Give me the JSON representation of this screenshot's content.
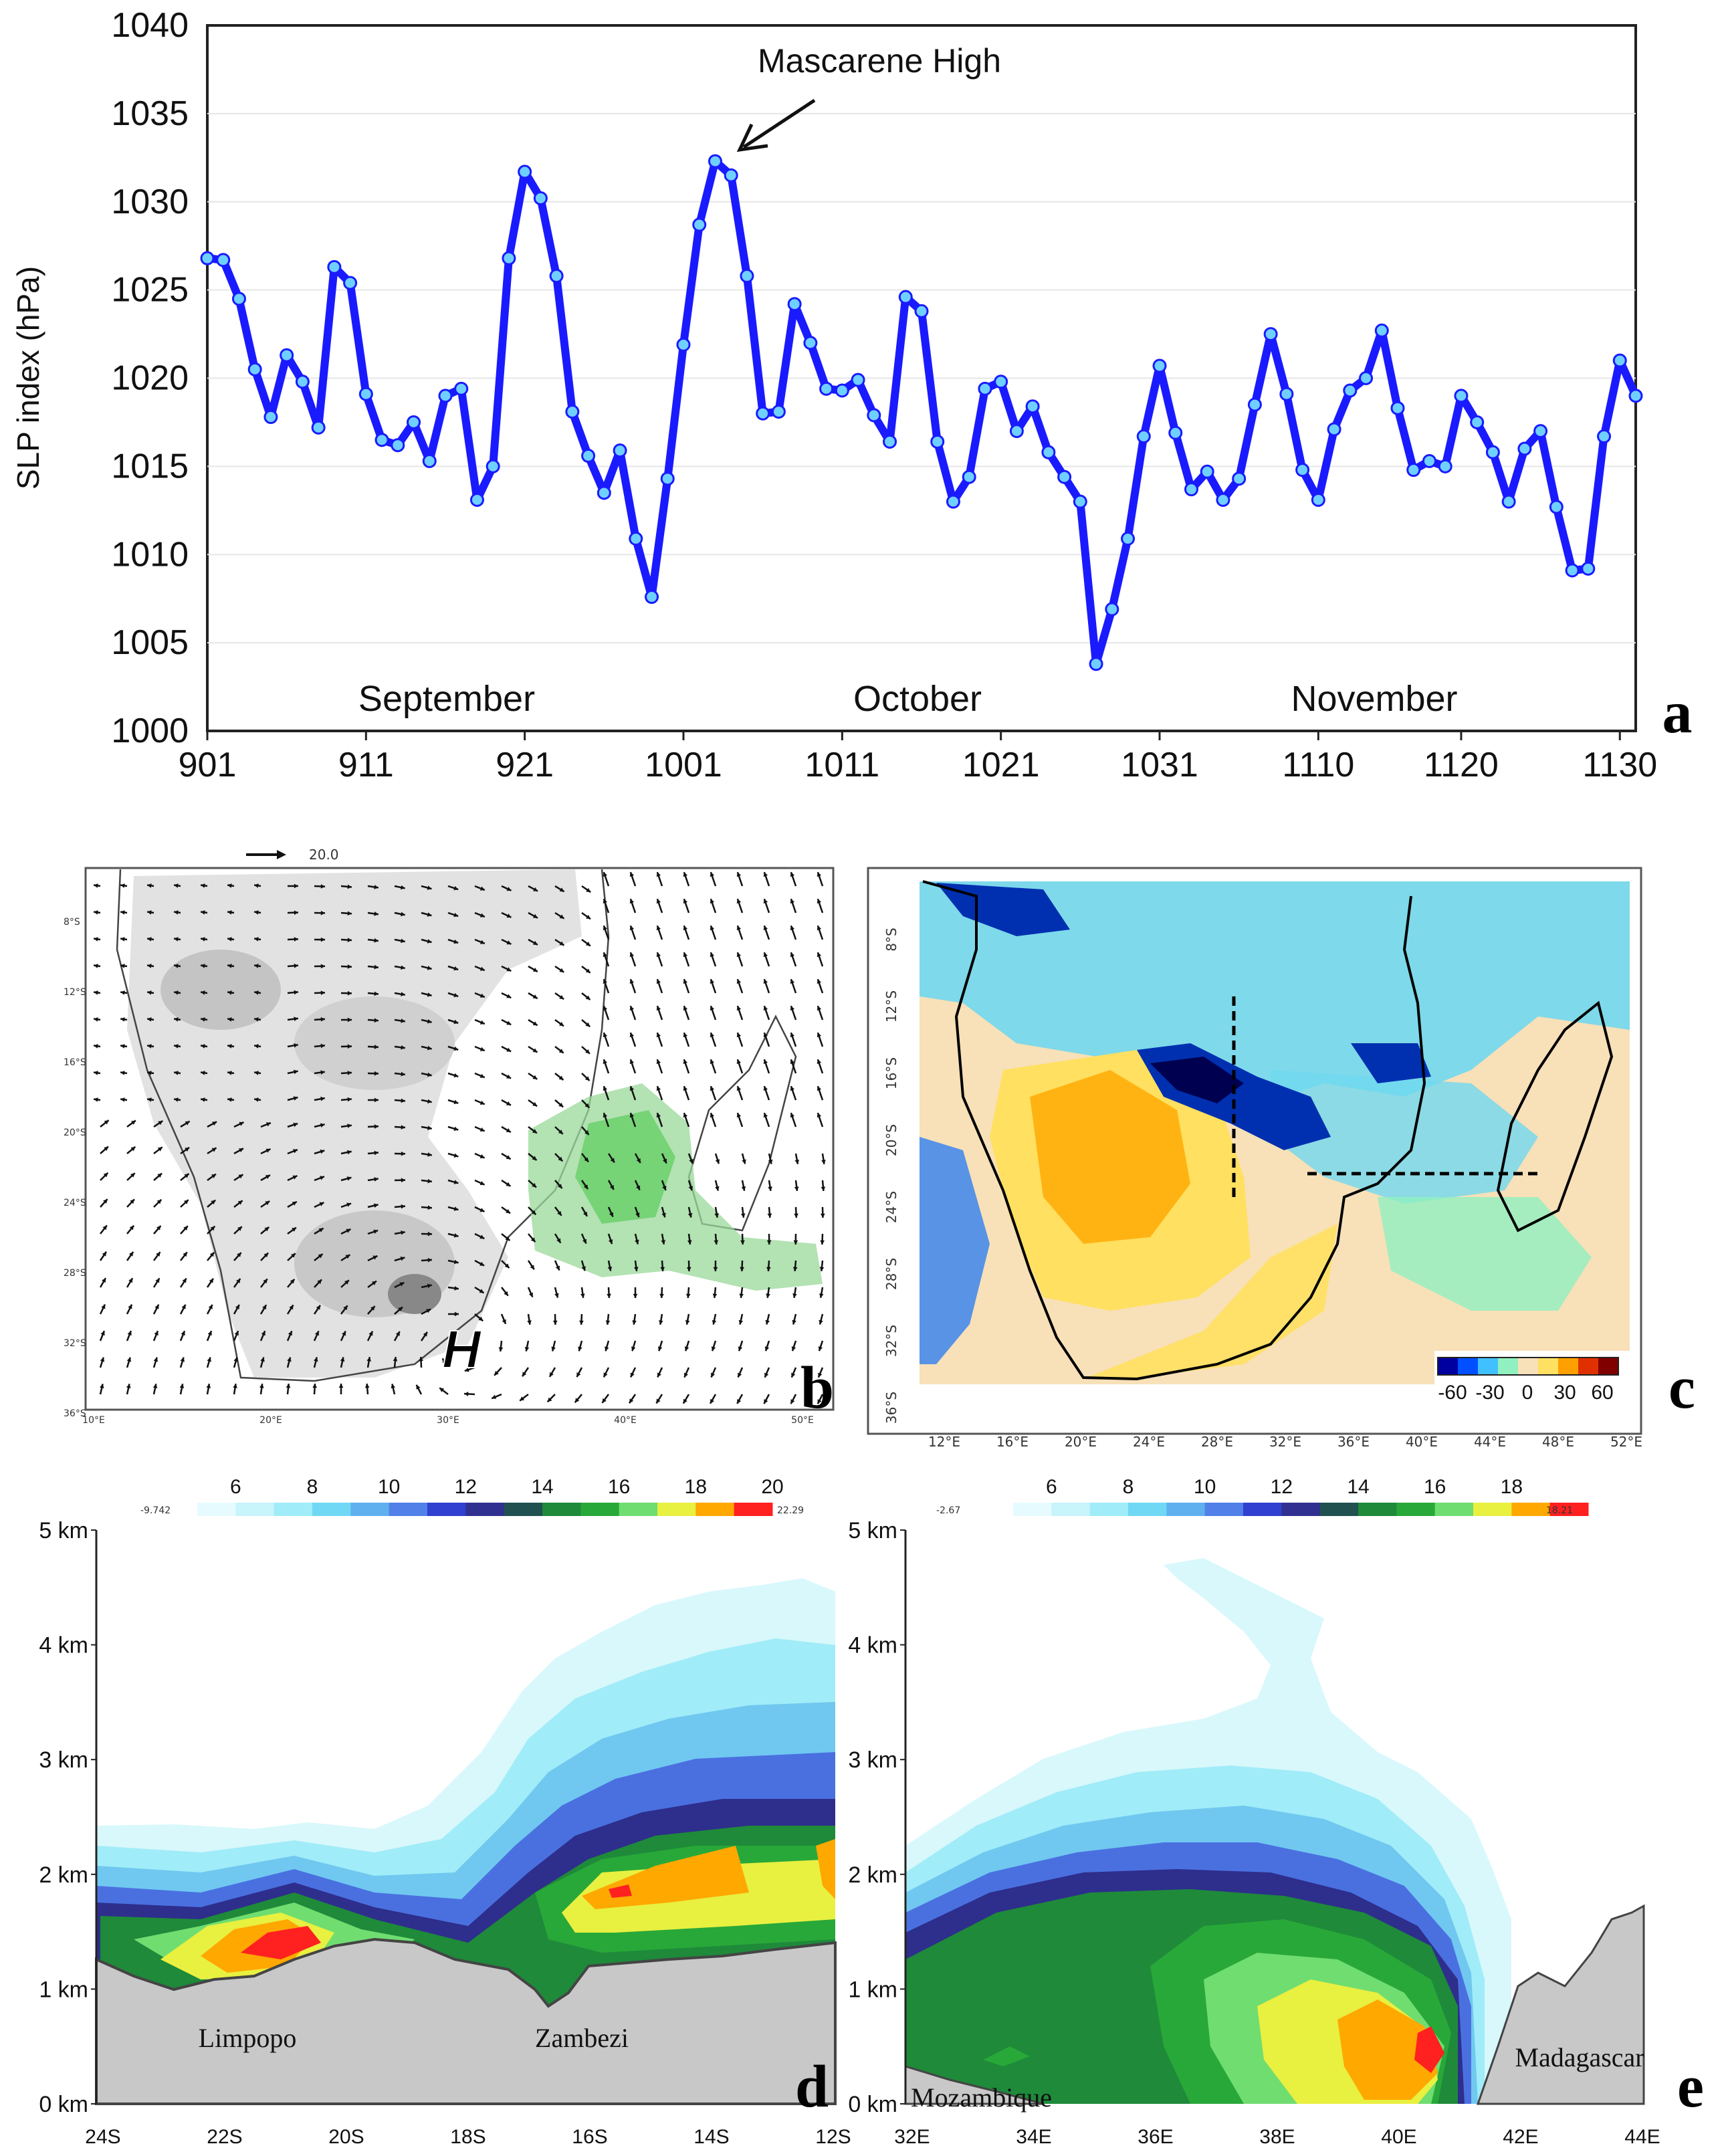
{
  "chart_data": [
    {
      "panel": "a",
      "type": "line",
      "ylabel": "SLP index (hPa)",
      "ylim": [
        1000,
        1040
      ],
      "yticks": [
        "1000",
        "1005",
        "1010",
        "1015",
        "1020",
        "1025",
        "1030",
        "1035",
        "1040"
      ],
      "xtick_labels": [
        "901",
        "911",
        "921",
        "1001",
        "1011",
        "1021",
        "1031",
        "1110",
        "1120",
        "1130"
      ],
      "month_labels": [
        "September",
        "October",
        "November"
      ],
      "annotation": "Mascarene High",
      "series_color": "#1a1aff",
      "values": [
        1026.8,
        1026.7,
        1024.5,
        1020.5,
        1017.8,
        1021.3,
        1019.8,
        1017.2,
        1026.3,
        1025.4,
        1019.1,
        1016.5,
        1016.2,
        1017.5,
        1015.3,
        1019.0,
        1019.4,
        1013.1,
        1015.0,
        1026.8,
        1031.7,
        1030.2,
        1025.8,
        1018.1,
        1015.6,
        1013.5,
        1015.9,
        1010.9,
        1007.6,
        1014.3,
        1021.9,
        1028.7,
        1032.3,
        1031.5,
        1025.8,
        1018.0,
        1018.1,
        1024.2,
        1022.0,
        1019.4,
        1019.3,
        1019.9,
        1017.9,
        1016.4,
        1024.6,
        1023.8,
        1016.4,
        1013.0,
        1014.4,
        1019.4,
        1019.8,
        1017.0,
        1018.4,
        1015.8,
        1014.4,
        1013.0,
        1003.8,
        1006.9,
        1010.9,
        1016.7,
        1020.7,
        1016.9,
        1013.7,
        1014.7,
        1013.1,
        1014.3,
        1018.5,
        1022.5,
        1019.1,
        1014.8,
        1013.1,
        1017.1,
        1019.3,
        1020.0,
        1022.7,
        1018.3,
        1014.8,
        1015.3,
        1015.0,
        1019.0,
        1017.5,
        1015.8,
        1013.0,
        1016.0,
        1017.0,
        1012.7,
        1009.1,
        1009.2,
        1016.7,
        1021.0,
        1019.0
      ]
    },
    {
      "panel": "b",
      "type": "other",
      "description_label": "wind vectors",
      "reference_vector": "20.0",
      "high_label": "H",
      "lat_labels": [
        "8°S",
        "12°S",
        "16°S",
        "20°S",
        "24°S",
        "28°S",
        "32°S",
        "36°S"
      ],
      "lon_labels": [
        "10°E",
        "20°E",
        "30°E",
        "40°E",
        "50°E"
      ]
    },
    {
      "panel": "c",
      "type": "heatmap",
      "lat_labels": [
        "8°S",
        "12°S",
        "16°S",
        "20°S",
        "24°S",
        "28°S",
        "32°S",
        "36°S"
      ],
      "lon_labels": [
        "12°E",
        "16°E",
        "20°E",
        "24°E",
        "28°E",
        "32°E",
        "36°E",
        "40°E",
        "44°E",
        "48°E",
        "52°E"
      ],
      "colorbar_labels": [
        "-60",
        "-30",
        "0",
        "30",
        "60"
      ],
      "colorbar_colors": [
        "#0000a0",
        "#0050ff",
        "#40c0ff",
        "#90f0c0",
        "#f8e0b8",
        "#ffe060",
        "#ffa000",
        "#e03000",
        "#800000"
      ]
    },
    {
      "panel": "d",
      "type": "other",
      "y_labels": [
        "0 km",
        "1 km",
        "2 km",
        "3 km",
        "4 km",
        "5 km"
      ],
      "x_labels": [
        "24S",
        "22S",
        "20S",
        "18S",
        "16S",
        "14S",
        "12S"
      ],
      "colorbar_labels": [
        "6",
        "8",
        "10",
        "12",
        "14",
        "16",
        "18",
        "20"
      ],
      "colorbar_min": "-9.742",
      "colorbar_max": "22.29",
      "place_labels": [
        "Limpopo",
        "Zambezi"
      ]
    },
    {
      "panel": "e",
      "type": "other",
      "y_labels": [
        "0 km",
        "1 km",
        "2 km",
        "3 km",
        "4 km",
        "5 km"
      ],
      "x_labels": [
        "32E",
        "34E",
        "36E",
        "38E",
        "40E",
        "42E",
        "44E"
      ],
      "colorbar_labels": [
        "6",
        "8",
        "10",
        "12",
        "14",
        "16",
        "18"
      ],
      "colorbar_min": "-2.67",
      "colorbar_max": "18.21",
      "place_labels": [
        "Mozambique",
        "Madagascar"
      ]
    }
  ],
  "contour_colors": [
    "#e6fbff",
    "#c8f4fc",
    "#a0ecf8",
    "#70d8f4",
    "#60b0f0",
    "#5080e8",
    "#3040d0",
    "#303090",
    "#205050",
    "#1e8a3a",
    "#28a838",
    "#70dd70",
    "#e8f040",
    "#ffa800",
    "#ff2020"
  ]
}
